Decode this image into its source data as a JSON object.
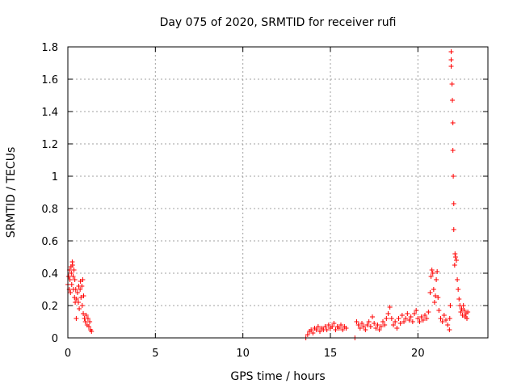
{
  "chart_data": {
    "type": "scatter",
    "title": "Day 075 of 2020, SRMTID for receiver rufi",
    "xlabel": "GPS time / hours",
    "ylabel": "SRMTID / TECUs",
    "xlim": [
      0,
      24
    ],
    "ylim": [
      0,
      1.8
    ],
    "x_ticks": [
      0,
      5,
      10,
      15,
      20
    ],
    "y_ticks": [
      0,
      0.2,
      0.4,
      0.6,
      0.8,
      1,
      1.2,
      1.4,
      1.6,
      1.8
    ],
    "x_tick_labels": [
      "0",
      "5",
      "10",
      "15",
      "20"
    ],
    "y_tick_labels": [
      "0",
      "0.2",
      "0.4",
      "0.6",
      "0.8",
      "1",
      "1.2",
      "1.4",
      "1.6",
      "1.8"
    ],
    "grid": true,
    "marker": "+",
    "color": "#ff0000",
    "series": [
      {
        "name": "SRMTID",
        "points": [
          [
            0.0,
            0.33
          ],
          [
            0.05,
            0.38
          ],
          [
            0.08,
            0.3
          ],
          [
            0.1,
            0.42
          ],
          [
            0.12,
            0.36
          ],
          [
            0.15,
            0.28
          ],
          [
            0.18,
            0.44
          ],
          [
            0.2,
            0.4
          ],
          [
            0.22,
            0.33
          ],
          [
            0.25,
            0.47
          ],
          [
            0.27,
            0.45
          ],
          [
            0.3,
            0.38
          ],
          [
            0.32,
            0.3
          ],
          [
            0.35,
            0.42
          ],
          [
            0.38,
            0.25
          ],
          [
            0.4,
            0.36
          ],
          [
            0.42,
            0.22
          ],
          [
            0.45,
            0.3
          ],
          [
            0.48,
            0.12
          ],
          [
            0.5,
            0.24
          ],
          [
            0.55,
            0.28
          ],
          [
            0.6,
            0.22
          ],
          [
            0.62,
            0.32
          ],
          [
            0.65,
            0.18
          ],
          [
            0.7,
            0.3
          ],
          [
            0.72,
            0.35
          ],
          [
            0.75,
            0.25
          ],
          [
            0.8,
            0.32
          ],
          [
            0.82,
            0.2
          ],
          [
            0.85,
            0.36
          ],
          [
            0.88,
            0.15
          ],
          [
            0.9,
            0.26
          ],
          [
            0.95,
            0.12
          ],
          [
            1.0,
            0.1
          ],
          [
            1.05,
            0.14
          ],
          [
            1.1,
            0.08
          ],
          [
            1.15,
            0.12
          ],
          [
            1.2,
            0.07
          ],
          [
            1.25,
            0.1
          ],
          [
            1.3,
            0.05
          ],
          [
            1.35,
            0.04
          ],
          [
            13.6,
            0.0
          ],
          [
            13.7,
            0.02
          ],
          [
            13.8,
            0.04
          ],
          [
            13.9,
            0.05
          ],
          [
            14.0,
            0.03
          ],
          [
            14.1,
            0.06
          ],
          [
            14.2,
            0.05
          ],
          [
            14.3,
            0.07
          ],
          [
            14.4,
            0.04
          ],
          [
            14.5,
            0.06
          ],
          [
            14.6,
            0.05
          ],
          [
            14.7,
            0.07
          ],
          [
            14.8,
            0.05
          ],
          [
            14.9,
            0.08
          ],
          [
            15.0,
            0.06
          ],
          [
            15.1,
            0.07
          ],
          [
            15.2,
            0.09
          ],
          [
            15.3,
            0.05
          ],
          [
            15.4,
            0.07
          ],
          [
            15.5,
            0.06
          ],
          [
            15.6,
            0.08
          ],
          [
            15.7,
            0.05
          ],
          [
            15.8,
            0.07
          ],
          [
            15.9,
            0.06
          ],
          [
            16.4,
            0.0
          ],
          [
            16.5,
            0.1
          ],
          [
            16.6,
            0.08
          ],
          [
            16.7,
            0.06
          ],
          [
            16.8,
            0.09
          ],
          [
            16.9,
            0.07
          ],
          [
            17.0,
            0.05
          ],
          [
            17.1,
            0.08
          ],
          [
            17.2,
            0.1
          ],
          [
            17.3,
            0.07
          ],
          [
            17.4,
            0.13
          ],
          [
            17.5,
            0.09
          ],
          [
            17.6,
            0.06
          ],
          [
            17.7,
            0.08
          ],
          [
            17.8,
            0.05
          ],
          [
            17.9,
            0.07
          ],
          [
            18.0,
            0.1
          ],
          [
            18.1,
            0.08
          ],
          [
            18.2,
            0.12
          ],
          [
            18.3,
            0.15
          ],
          [
            18.4,
            0.19
          ],
          [
            18.5,
            0.12
          ],
          [
            18.6,
            0.08
          ],
          [
            18.7,
            0.1
          ],
          [
            18.8,
            0.06
          ],
          [
            18.9,
            0.12
          ],
          [
            19.0,
            0.09
          ],
          [
            19.1,
            0.14
          ],
          [
            19.2,
            0.1
          ],
          [
            19.3,
            0.12
          ],
          [
            19.4,
            0.15
          ],
          [
            19.5,
            0.11
          ],
          [
            19.6,
            0.13
          ],
          [
            19.7,
            0.1
          ],
          [
            19.8,
            0.15
          ],
          [
            19.9,
            0.17
          ],
          [
            20.0,
            0.12
          ],
          [
            20.1,
            0.1
          ],
          [
            20.2,
            0.13
          ],
          [
            20.3,
            0.11
          ],
          [
            20.4,
            0.14
          ],
          [
            20.5,
            0.12
          ],
          [
            20.6,
            0.16
          ],
          [
            20.7,
            0.28
          ],
          [
            20.75,
            0.38
          ],
          [
            20.8,
            0.42
          ],
          [
            20.85,
            0.4
          ],
          [
            20.9,
            0.3
          ],
          [
            20.95,
            0.22
          ],
          [
            21.0,
            0.26
          ],
          [
            21.05,
            0.36
          ],
          [
            21.1,
            0.41
          ],
          [
            21.15,
            0.25
          ],
          [
            21.2,
            0.17
          ],
          [
            21.3,
            0.12
          ],
          [
            21.4,
            0.1
          ],
          [
            21.5,
            0.14
          ],
          [
            21.6,
            0.11
          ],
          [
            21.7,
            0.08
          ],
          [
            21.8,
            0.05
          ],
          [
            21.82,
            0.12
          ],
          [
            21.85,
            0.2
          ],
          [
            21.9,
            1.77
          ],
          [
            21.9,
            1.72
          ],
          [
            21.9,
            1.68
          ],
          [
            21.95,
            1.57
          ],
          [
            21.97,
            1.47
          ],
          [
            22.0,
            1.33
          ],
          [
            22.0,
            1.16
          ],
          [
            22.02,
            1.0
          ],
          [
            22.05,
            0.83
          ],
          [
            22.05,
            0.67
          ],
          [
            22.1,
            0.45
          ],
          [
            22.12,
            0.52
          ],
          [
            22.15,
            0.5
          ],
          [
            22.2,
            0.48
          ],
          [
            22.25,
            0.36
          ],
          [
            22.3,
            0.3
          ],
          [
            22.35,
            0.24
          ],
          [
            22.4,
            0.2
          ],
          [
            22.45,
            0.16
          ],
          [
            22.5,
            0.18
          ],
          [
            22.55,
            0.14
          ],
          [
            22.6,
            0.2
          ],
          [
            22.65,
            0.17
          ],
          [
            22.7,
            0.13
          ],
          [
            22.75,
            0.15
          ],
          [
            22.8,
            0.12
          ],
          [
            22.85,
            0.16
          ]
        ]
      }
    ]
  }
}
